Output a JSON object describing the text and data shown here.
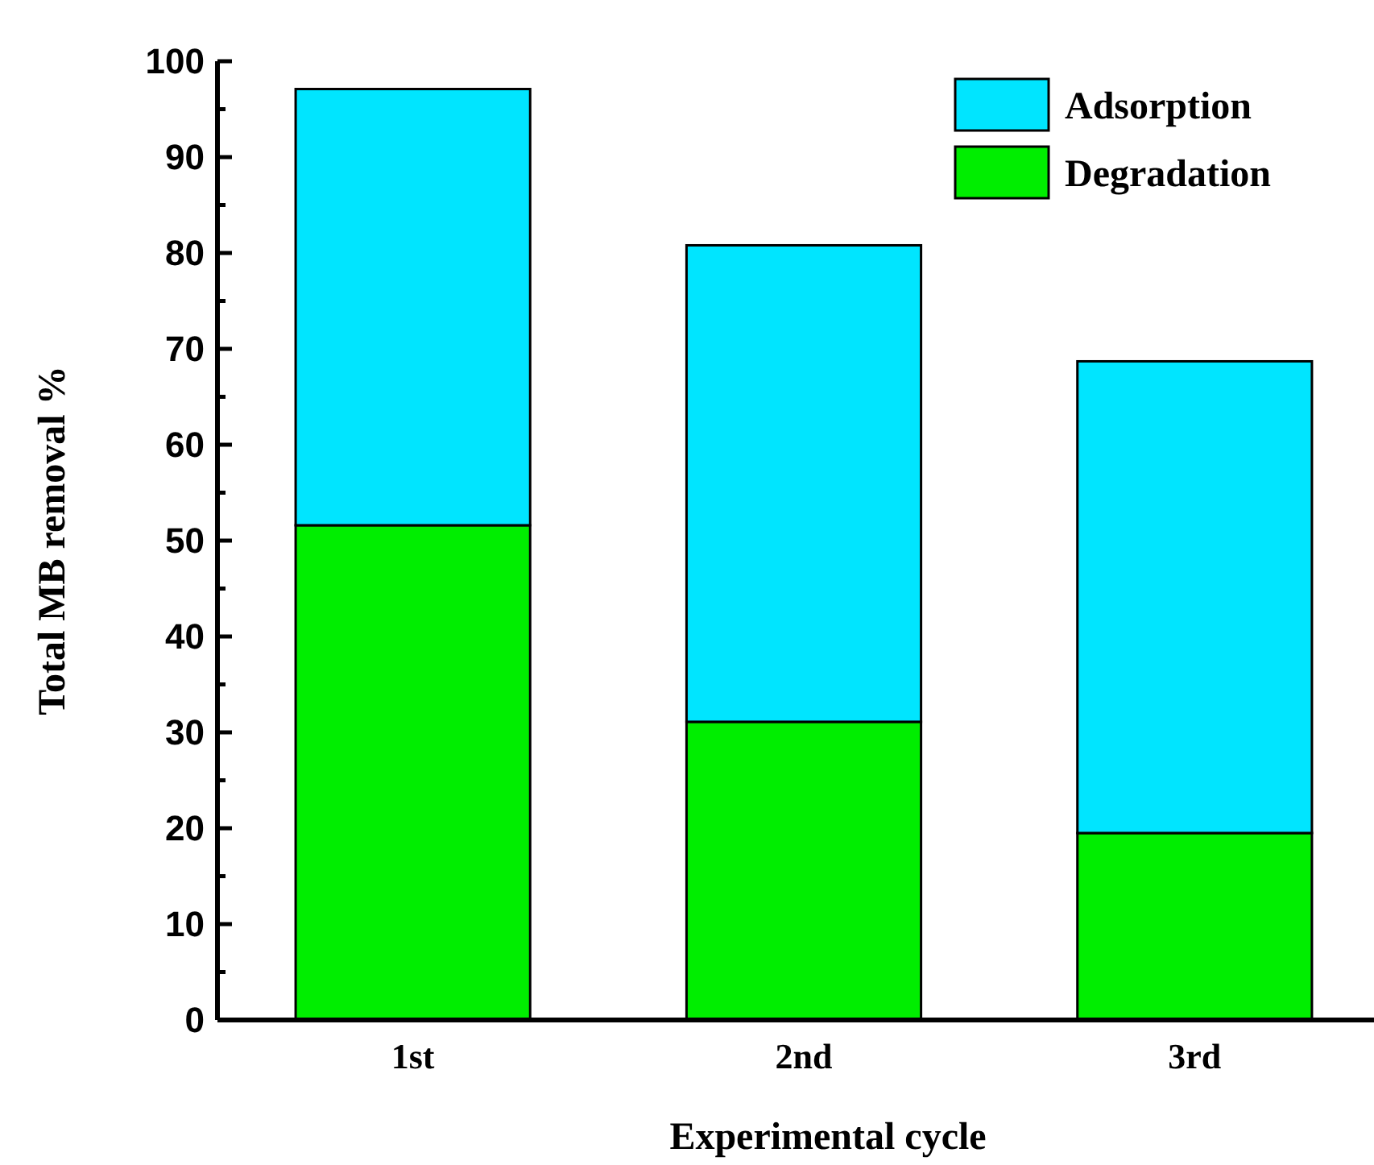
{
  "chart_data": {
    "type": "bar",
    "stacked": true,
    "xlabel": "Experimental cycle",
    "ylabel": "Total MB removal %",
    "categories": [
      "1st",
      "2nd",
      "3rd"
    ],
    "series": [
      {
        "name": "Degradation",
        "color": "#00ee00",
        "values": [
          51.6,
          31.1,
          19.5
        ]
      },
      {
        "name": "Adsorption",
        "color": "#00e5ff",
        "values": [
          45.5,
          49.7,
          49.2
        ]
      }
    ],
    "ylim": [
      0,
      100
    ],
    "yticks": [
      0,
      {
        "value": 5,
        "label": null
      },
      10,
      {
        "value": 15,
        "label": null
      },
      20,
      {
        "value": 25,
        "label": null
      },
      30,
      {
        "value": 35,
        "label": null
      },
      40,
      {
        "value": 45,
        "label": null
      },
      50,
      {
        "value": 55,
        "label": null
      },
      60,
      {
        "value": 65,
        "label": null
      },
      70,
      {
        "value": 75,
        "label": null
      },
      80,
      {
        "value": 85,
        "label": null
      },
      90,
      {
        "value": 95,
        "label": null
      },
      100
    ],
    "grid": false,
    "legend": "top right"
  }
}
